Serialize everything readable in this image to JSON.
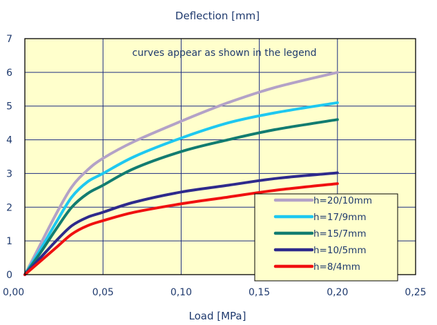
{
  "chart_data": {
    "type": "line",
    "title": "Deflection [mm]",
    "xlabel": "Load [MPa]",
    "ylabel": "",
    "annotation": "curves appear as shown in the legend",
    "xlim": [
      0,
      0.25
    ],
    "ylim": [
      0,
      7
    ],
    "x_ticks": [
      "0,00",
      "0,05",
      "0,10",
      "0,15",
      "0,20",
      "0,25"
    ],
    "y_ticks": [
      "0",
      "1",
      "2",
      "3",
      "4",
      "5",
      "6",
      "7"
    ],
    "grid": true,
    "legend_position": "bottom-right",
    "colors": {
      "plot_background": "#ffffcc",
      "frame": "#000000",
      "grid": "#1a2a80",
      "text": "#1f3a6e"
    },
    "series": [
      {
        "name": "h=20/10mm",
        "color": "#b3a2c7",
        "points": [
          [
            0,
            0
          ],
          [
            0.01,
            0.9
          ],
          [
            0.02,
            1.8
          ],
          [
            0.03,
            2.6
          ],
          [
            0.04,
            3.1
          ],
          [
            0.05,
            3.45
          ],
          [
            0.07,
            3.95
          ],
          [
            0.1,
            4.55
          ],
          [
            0.13,
            5.1
          ],
          [
            0.16,
            5.55
          ],
          [
            0.2,
            6.0
          ]
        ]
      },
      {
        "name": "h=17/9mm",
        "color": "#1ec8f0",
        "points": [
          [
            0,
            0
          ],
          [
            0.01,
            0.75
          ],
          [
            0.02,
            1.55
          ],
          [
            0.03,
            2.3
          ],
          [
            0.04,
            2.75
          ],
          [
            0.05,
            3.0
          ],
          [
            0.07,
            3.5
          ],
          [
            0.1,
            4.05
          ],
          [
            0.13,
            4.5
          ],
          [
            0.16,
            4.8
          ],
          [
            0.2,
            5.1
          ]
        ]
      },
      {
        "name": "h=15/7mm",
        "color": "#127c70",
        "points": [
          [
            0,
            0
          ],
          [
            0.01,
            0.65
          ],
          [
            0.02,
            1.35
          ],
          [
            0.03,
            2.0
          ],
          [
            0.04,
            2.4
          ],
          [
            0.05,
            2.65
          ],
          [
            0.07,
            3.15
          ],
          [
            0.1,
            3.65
          ],
          [
            0.13,
            4.0
          ],
          [
            0.16,
            4.3
          ],
          [
            0.2,
            4.6
          ]
        ]
      },
      {
        "name": "h=10/5mm",
        "color": "#2e2a8c",
        "points": [
          [
            0,
            0
          ],
          [
            0.01,
            0.5
          ],
          [
            0.02,
            1.0
          ],
          [
            0.03,
            1.45
          ],
          [
            0.04,
            1.7
          ],
          [
            0.05,
            1.85
          ],
          [
            0.07,
            2.15
          ],
          [
            0.1,
            2.45
          ],
          [
            0.13,
            2.65
          ],
          [
            0.16,
            2.85
          ],
          [
            0.2,
            3.02
          ]
        ]
      },
      {
        "name": "h=8/4mm",
        "color": "#f01010",
        "points": [
          [
            0,
            0
          ],
          [
            0.01,
            0.4
          ],
          [
            0.02,
            0.8
          ],
          [
            0.03,
            1.2
          ],
          [
            0.04,
            1.45
          ],
          [
            0.05,
            1.6
          ],
          [
            0.07,
            1.85
          ],
          [
            0.1,
            2.1
          ],
          [
            0.13,
            2.3
          ],
          [
            0.16,
            2.5
          ],
          [
            0.2,
            2.7
          ]
        ]
      }
    ]
  }
}
